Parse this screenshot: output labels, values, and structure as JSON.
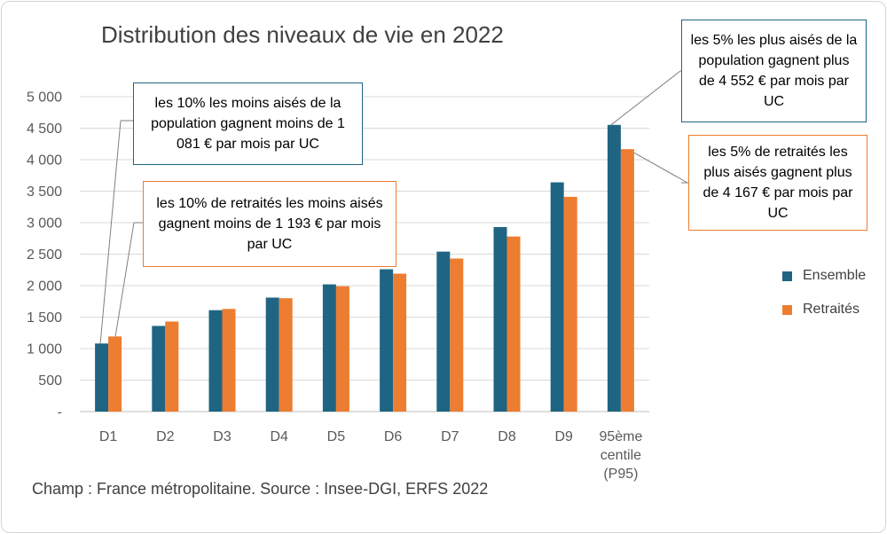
{
  "chart_data": {
    "type": "bar",
    "title": "Distribution des niveaux de vie en 2022",
    "categories": [
      "D1",
      "D2",
      "D3",
      "D4",
      "D5",
      "D6",
      "D7",
      "D8",
      "D9",
      "95ème centile (P95)"
    ],
    "category_lines": [
      [
        "D1"
      ],
      [
        "D2"
      ],
      [
        "D3"
      ],
      [
        "D4"
      ],
      [
        "D5"
      ],
      [
        "D6"
      ],
      [
        "D7"
      ],
      [
        "D8"
      ],
      [
        "D9"
      ],
      [
        "95ème",
        "centile",
        "(P95)"
      ]
    ],
    "series": [
      {
        "name": "Ensemble",
        "color": "#1f6583",
        "values": [
          1081,
          1360,
          1610,
          1810,
          2020,
          2260,
          2540,
          2930,
          3640,
          4552
        ]
      },
      {
        "name": "Retraités",
        "color": "#ed7d31",
        "values": [
          1193,
          1430,
          1630,
          1800,
          1990,
          2190,
          2430,
          2780,
          3410,
          4167
        ]
      }
    ],
    "ylim": [
      0,
      5000
    ],
    "yticks": [
      0,
      500,
      1000,
      1500,
      2000,
      2500,
      3000,
      3500,
      4000,
      4500,
      5000
    ],
    "ytick_labels": [
      "-",
      "500",
      "1 000",
      "1 500",
      "2 000",
      "2 500",
      "3 000",
      "3 500",
      "4 000",
      "4 500",
      "5 000"
    ],
    "xlabel": "",
    "ylabel": "",
    "grid": true,
    "legend_position": "right",
    "annotations": [
      {
        "text": "les 10% les moins aisés de la population gagnent moins de 1 081 € par mois par UC",
        "series": "Ensemble",
        "category": "D1",
        "color": "#1f6583"
      },
      {
        "text": "les 10% de retraités les moins aisés gagnent moins de 1 193 € par mois par UC",
        "series": "Retraités",
        "category": "D1",
        "color": "#ed7d31"
      },
      {
        "text": "les 5% les plus aisés de la population gagnent plus de 4 552 € par mois par UC",
        "series": "Ensemble",
        "category": "95ème centile (P95)",
        "color": "#1f6583"
      },
      {
        "text": "les 5% de retraités les plus aisés gagnent plus de 4 167 € par mois par UC",
        "series": "Retraités",
        "category": "95ème centile (P95)",
        "color": "#ed7d31"
      }
    ]
  },
  "source": "Champ : France métropolitaine. Source : Insee-DGI, ERFS 2022"
}
